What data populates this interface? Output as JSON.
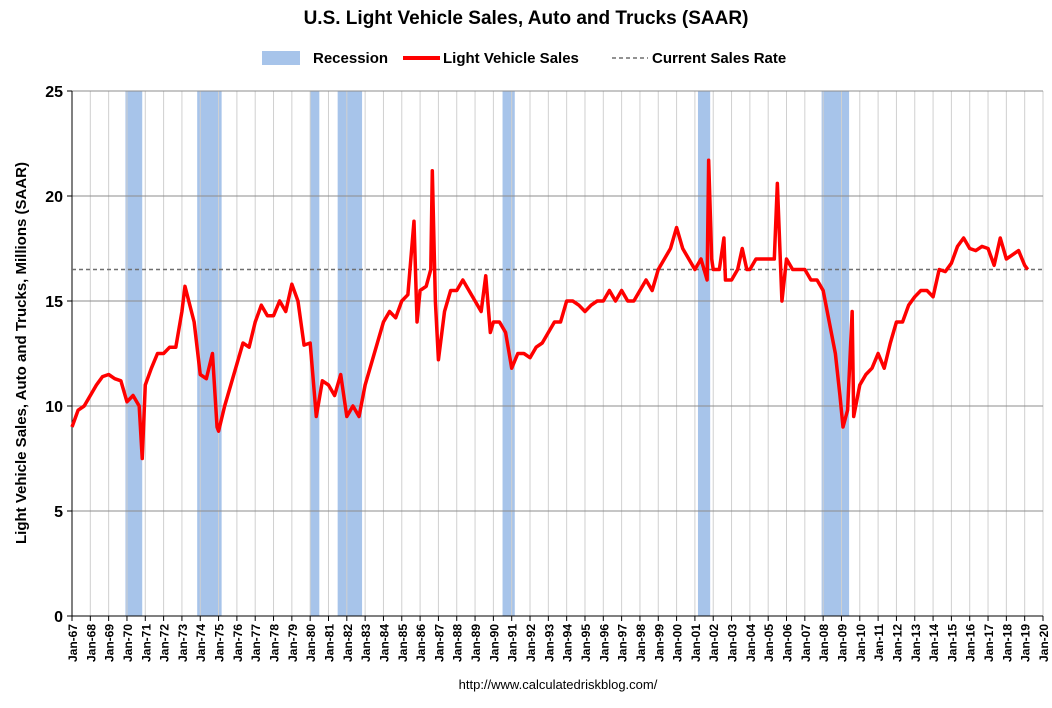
{
  "chart_data": {
    "type": "line",
    "title": "U.S. Light Vehicle Sales, Auto and Trucks (SAAR)",
    "y_label": "Light Vehicle Sales, Auto and Trucks, Millions (SAAR)",
    "source": "http://www.calculatedriskblog.com/",
    "ylim": [
      0,
      25
    ],
    "yticks": [
      0,
      5,
      10,
      15,
      20,
      25
    ],
    "xlim": [
      "1967-01",
      "2020-01"
    ],
    "xticks": [
      {
        "value": "1967-01",
        "label": "Jan-67"
      },
      {
        "value": "1968-01",
        "label": "Jan-68"
      },
      {
        "value": "1969-01",
        "label": "Jan-69"
      },
      {
        "value": "1970-01",
        "label": "Jan-70"
      },
      {
        "value": "1971-01",
        "label": "Jan-71"
      },
      {
        "value": "1972-01",
        "label": "Jan-72"
      },
      {
        "value": "1973-01",
        "label": "Jan-73"
      },
      {
        "value": "1974-01",
        "label": "Jan-74"
      },
      {
        "value": "1975-01",
        "label": "Jan-75"
      },
      {
        "value": "1976-01",
        "label": "Jan-76"
      },
      {
        "value": "1977-01",
        "label": "Jan-77"
      },
      {
        "value": "1978-01",
        "label": "Jan-78"
      },
      {
        "value": "1979-01",
        "label": "Jan-79"
      },
      {
        "value": "1980-01",
        "label": "Jan-80"
      },
      {
        "value": "1981-01",
        "label": "Jan-81"
      },
      {
        "value": "1982-01",
        "label": "Jan-82"
      },
      {
        "value": "1983-01",
        "label": "Jan-83"
      },
      {
        "value": "1984-01",
        "label": "Jan-84"
      },
      {
        "value": "1985-01",
        "label": "Jan-85"
      },
      {
        "value": "1986-01",
        "label": "Jan-86"
      },
      {
        "value": "1987-01",
        "label": "Jan-87"
      },
      {
        "value": "1988-01",
        "label": "Jan-88"
      },
      {
        "value": "1989-01",
        "label": "Jan-89"
      },
      {
        "value": "1990-01",
        "label": "Jan-90"
      },
      {
        "value": "1991-01",
        "label": "Jan-91"
      },
      {
        "value": "1992-01",
        "label": "Jan-92"
      },
      {
        "value": "1993-01",
        "label": "Jan-93"
      },
      {
        "value": "1994-01",
        "label": "Jan-94"
      },
      {
        "value": "1995-01",
        "label": "Jan-95"
      },
      {
        "value": "1996-01",
        "label": "Jan-96"
      },
      {
        "value": "1997-01",
        "label": "Jan-97"
      },
      {
        "value": "1998-01",
        "label": "Jan-98"
      },
      {
        "value": "1999-01",
        "label": "Jan-99"
      },
      {
        "value": "2000-01",
        "label": "Jan-00"
      },
      {
        "value": "2001-01",
        "label": "Jan-01"
      },
      {
        "value": "2002-01",
        "label": "Jan-02"
      },
      {
        "value": "2003-01",
        "label": "Jan-03"
      },
      {
        "value": "2004-01",
        "label": "Jan-04"
      },
      {
        "value": "2005-01",
        "label": "Jan-05"
      },
      {
        "value": "2006-01",
        "label": "Jan-06"
      },
      {
        "value": "2007-01",
        "label": "Jan-07"
      },
      {
        "value": "2008-01",
        "label": "Jan-08"
      },
      {
        "value": "2009-01",
        "label": "Jan-09"
      },
      {
        "value": "2010-01",
        "label": "Jan-10"
      },
      {
        "value": "2011-01",
        "label": "Jan-11"
      },
      {
        "value": "2012-01",
        "label": "Jan-12"
      },
      {
        "value": "2013-01",
        "label": "Jan-13"
      },
      {
        "value": "2014-01",
        "label": "Jan-14"
      },
      {
        "value": "2015-01",
        "label": "Jan-15"
      },
      {
        "value": "2016-01",
        "label": "Jan-16"
      },
      {
        "value": "2017-01",
        "label": "Jan-17"
      },
      {
        "value": "2018-01",
        "label": "Jan-18"
      },
      {
        "value": "2019-01",
        "label": "Jan-19"
      },
      {
        "value": "2020-01",
        "label": "Jan-20"
      }
    ],
    "grid": true,
    "recession": {
      "name": "Recession",
      "color": "#a7c4ea",
      "periods": [
        [
          "1969-12",
          "1970-11"
        ],
        [
          "1973-11",
          "1975-03"
        ],
        [
          "1980-01",
          "1980-07"
        ],
        [
          "1981-07",
          "1982-11"
        ],
        [
          "1990-07",
          "1991-03"
        ],
        [
          "2001-03",
          "2001-11"
        ],
        [
          "2007-12",
          "2009-06"
        ]
      ]
    },
    "current_rate": {
      "name": "Current Sales Rate",
      "color": "#6f6f6f",
      "value": 16.5
    },
    "x": [
      "1967-01",
      "1967-05",
      "1967-09",
      "1968-01",
      "1968-05",
      "1968-09",
      "1969-01",
      "1969-05",
      "1969-09",
      "1970-01",
      "1970-05",
      "1970-09",
      "1970-11",
      "1971-01",
      "1971-05",
      "1971-09",
      "1972-01",
      "1972-05",
      "1972-09",
      "1973-01",
      "1973-03",
      "1973-09",
      "1974-01",
      "1974-05",
      "1974-09",
      "1974-12",
      "1975-01",
      "1975-05",
      "1975-09",
      "1976-01",
      "1976-05",
      "1976-09",
      "1977-01",
      "1977-05",
      "1977-09",
      "1978-01",
      "1978-05",
      "1978-09",
      "1979-01",
      "1979-05",
      "1979-09",
      "1980-01",
      "1980-05",
      "1980-09",
      "1981-01",
      "1981-05",
      "1981-09",
      "1982-01",
      "1982-05",
      "1982-09",
      "1983-01",
      "1983-05",
      "1983-09",
      "1984-01",
      "1984-05",
      "1984-09",
      "1985-01",
      "1985-05",
      "1985-09",
      "1985-11",
      "1986-01",
      "1986-05",
      "1986-08",
      "1986-09",
      "1986-11",
      "1987-01",
      "1987-05",
      "1987-09",
      "1988-01",
      "1988-05",
      "1988-09",
      "1989-01",
      "1989-05",
      "1989-08",
      "1989-11",
      "1990-01",
      "1990-05",
      "1990-09",
      "1991-01",
      "1991-05",
      "1991-09",
      "1992-01",
      "1992-05",
      "1992-09",
      "1993-01",
      "1993-05",
      "1993-09",
      "1994-01",
      "1994-05",
      "1994-09",
      "1995-01",
      "1995-05",
      "1995-09",
      "1996-01",
      "1996-05",
      "1996-09",
      "1997-01",
      "1997-05",
      "1997-09",
      "1998-01",
      "1998-05",
      "1998-09",
      "1999-01",
      "1999-05",
      "1999-09",
      "2000-01",
      "2000-05",
      "2000-09",
      "2001-01",
      "2001-05",
      "2001-09",
      "2001-10",
      "2001-12",
      "2002-01",
      "2002-05",
      "2002-08",
      "2002-09",
      "2003-01",
      "2003-05",
      "2003-08",
      "2003-11",
      "2004-01",
      "2004-05",
      "2004-09",
      "2005-01",
      "2005-05",
      "2005-07",
      "2005-10",
      "2006-01",
      "2006-05",
      "2006-09",
      "2007-01",
      "2007-05",
      "2007-09",
      "2008-01",
      "2008-05",
      "2008-09",
      "2008-12",
      "2009-02",
      "2009-05",
      "2009-08",
      "2009-09",
      "2010-01",
      "2010-05",
      "2010-09",
      "2011-01",
      "2011-05",
      "2011-09",
      "2012-01",
      "2012-05",
      "2012-09",
      "2013-01",
      "2013-05",
      "2013-09",
      "2014-01",
      "2014-05",
      "2014-09",
      "2015-01",
      "2015-05",
      "2015-09",
      "2016-01",
      "2016-05",
      "2016-09",
      "2017-01",
      "2017-05",
      "2017-09",
      "2018-01",
      "2018-05",
      "2018-09",
      "2019-01",
      "2019-03"
    ],
    "series": [
      {
        "name": "Light Vehicle Sales",
        "color": "#ff0000",
        "values": [
          9.0,
          9.8,
          10.0,
          10.5,
          11.0,
          11.4,
          11.5,
          11.3,
          11.2,
          10.2,
          10.5,
          10.0,
          7.5,
          11.0,
          11.8,
          12.5,
          12.5,
          12.8,
          12.8,
          14.5,
          15.7,
          14.0,
          11.5,
          11.3,
          12.5,
          9.0,
          8.8,
          10.0,
          11.0,
          12.0,
          13.0,
          12.8,
          14.0,
          14.8,
          14.3,
          14.3,
          15.0,
          14.5,
          15.8,
          15.0,
          12.9,
          13.0,
          9.5,
          11.2,
          11.0,
          10.5,
          11.5,
          9.5,
          10.0,
          9.5,
          11.0,
          12.0,
          13.0,
          14.0,
          14.5,
          14.2,
          15.0,
          15.3,
          18.8,
          14.0,
          15.5,
          15.7,
          16.5,
          21.2,
          15.0,
          12.2,
          14.5,
          15.5,
          15.5,
          16.0,
          15.5,
          15.0,
          14.5,
          16.2,
          13.5,
          14.0,
          14.0,
          13.5,
          11.8,
          12.5,
          12.5,
          12.3,
          12.8,
          13.0,
          13.5,
          14.0,
          14.0,
          15.0,
          15.0,
          14.8,
          14.5,
          14.8,
          15.0,
          15.0,
          15.5,
          15.0,
          15.5,
          15.0,
          15.0,
          15.5,
          16.0,
          15.5,
          16.5,
          17.0,
          17.5,
          18.5,
          17.5,
          17.0,
          16.5,
          17.0,
          16.0,
          21.7,
          17.0,
          16.5,
          16.5,
          18.0,
          16.0,
          16.0,
          16.5,
          17.5,
          16.5,
          16.5,
          17.0,
          17.0,
          17.0,
          17.0,
          20.6,
          15.0,
          17.0,
          16.5,
          16.5,
          16.5,
          16.0,
          16.0,
          15.5,
          14.0,
          12.5,
          10.5,
          9.0,
          9.8,
          14.5,
          9.5,
          11.0,
          11.5,
          11.8,
          12.5,
          11.8,
          13.0,
          14.0,
          14.0,
          14.8,
          15.2,
          15.5,
          15.5,
          15.2,
          16.5,
          16.4,
          16.8,
          17.6,
          18.0,
          17.5,
          17.4,
          17.6,
          17.5,
          16.7,
          18.0,
          17.0,
          17.2,
          17.4,
          16.7,
          16.5
        ]
      }
    ]
  }
}
